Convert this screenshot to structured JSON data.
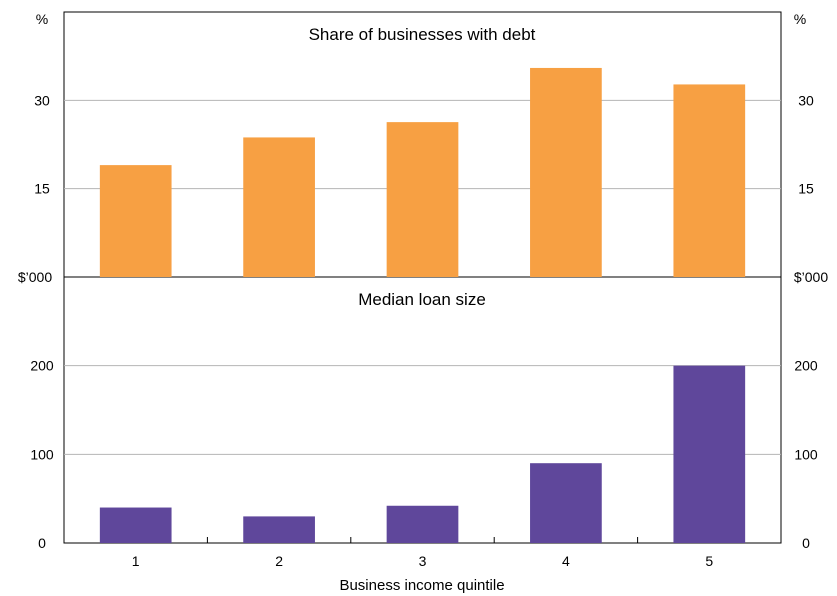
{
  "chart_data": [
    {
      "type": "bar",
      "title": "Share of businesses with debt",
      "unit_left": "%",
      "unit_right": "%",
      "categories": [
        "1",
        "2",
        "3",
        "4",
        "5"
      ],
      "values": [
        19,
        23.7,
        26.3,
        35.5,
        32.7
      ],
      "ylim": [
        0,
        45
      ],
      "yticks": [
        15,
        30
      ],
      "color": "#f7a043",
      "grid": true
    },
    {
      "type": "bar",
      "title": "Median loan size",
      "unit_left": "$’000",
      "unit_right": "$’000",
      "categories": [
        "1",
        "2",
        "3",
        "4",
        "5"
      ],
      "values": [
        40,
        30,
        42,
        90,
        200
      ],
      "ylim": [
        0,
        300
      ],
      "yticks": [
        0,
        100,
        200
      ],
      "color": "#5f479b",
      "grid": true
    }
  ],
  "xlabel": "Business income quintile"
}
